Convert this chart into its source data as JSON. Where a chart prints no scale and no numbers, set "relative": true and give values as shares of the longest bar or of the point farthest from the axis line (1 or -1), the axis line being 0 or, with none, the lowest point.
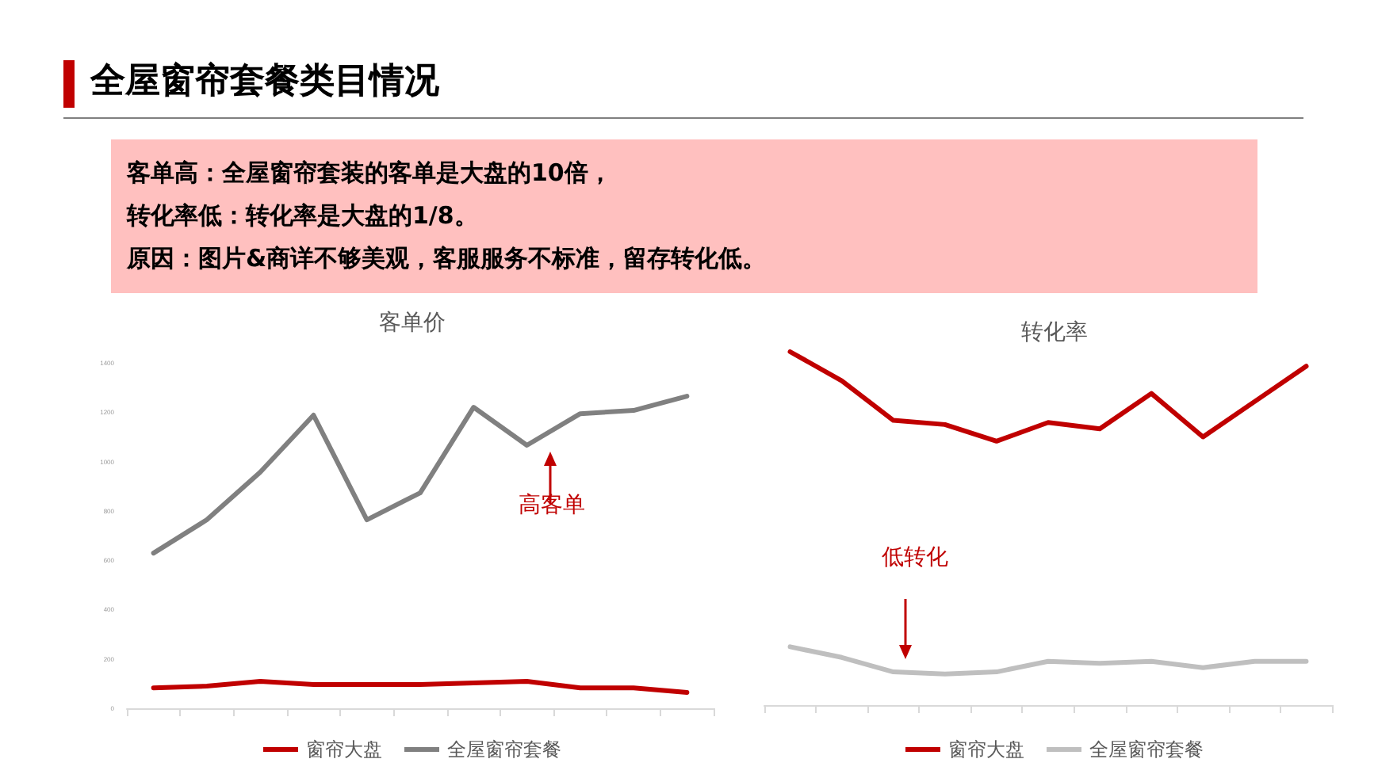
{
  "chart_data": [
    {
      "type": "other",
      "title": "全屋窗帘套餐类目情况",
      "annotations": [
        "客单高：全屋窗帘套装的客单是大盘的10倍，",
        "转化率低：转化率是大盘的1/8。",
        "原因：图片&商详不够美观，客服服务不标准，留存转化低。"
      ]
    },
    {
      "type": "line",
      "title": "客单价",
      "categories": [
        null,
        null,
        null,
        null,
        null,
        null,
        null,
        null,
        null,
        null,
        null
      ],
      "ylim": [
        0,
        1400
      ],
      "yticks": [
        0,
        200,
        400,
        600,
        800,
        1000,
        1200,
        1400
      ],
      "tick_labels": "y",
      "legend": "bottom",
      "annotations": [
        "高客单"
      ],
      "series": [
        {
          "name": "窗帘大盘",
          "color": "#c00000",
          "values": [
            83,
            90,
            109,
            96,
            96,
            96,
            103,
            109,
            83,
            83,
            64
          ]
        },
        {
          "name": "全屋窗帘套餐",
          "color": "#808080",
          "values": [
            629,
            764,
            957,
            1188,
            764,
            873,
            1220,
            1066,
            1194,
            1207,
            1265
          ]
        }
      ]
    },
    {
      "type": "line",
      "title": "转化率",
      "categories": [
        null,
        null,
        null,
        null,
        null,
        null,
        null,
        null,
        null,
        null,
        null
      ],
      "relative": true,
      "legend": "bottom",
      "annotations": [
        "低转化"
      ],
      "series": [
        {
          "name": "窗帘大盘",
          "color": "#c00000",
          "values": [
            1,
            0.918,
            0.806,
            0.794,
            0.747,
            0.8,
            0.782,
            0.882,
            0.759,
            0.859,
            0.959
          ]
        },
        {
          "name": "全屋窗帘套餐",
          "color": "#bfbfbf",
          "values": [
            0.165,
            0.135,
            0.094,
            0.088,
            0.094,
            0.124,
            0.118,
            0.124,
            0.106,
            0.124,
            0.124
          ]
        }
      ]
    }
  ]
}
